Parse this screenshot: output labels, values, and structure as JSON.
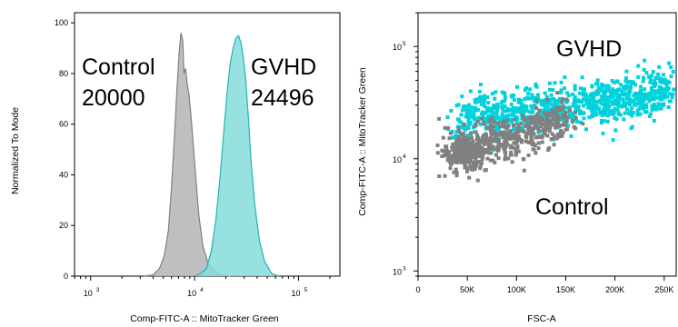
{
  "chart_data": [
    {
      "type": "area",
      "xscale": "log",
      "xlabel": "Comp-FITC-A :: MitoTracker Green",
      "ylabel": "Normalized To Mode",
      "xlim": [
        700,
        250000
      ],
      "ylim": [
        0,
        104
      ],
      "x_ticks": [
        "10",
        "10",
        "10"
      ],
      "x_tick_exponents": [
        "3",
        "4",
        "5"
      ],
      "y_ticks": [
        "0",
        "20",
        "40",
        "60",
        "80",
        "100"
      ],
      "annotations": [
        {
          "text": "Control",
          "color": "#000000"
        },
        {
          "text": "20000",
          "color": "#000000"
        },
        {
          "text": "GVHD",
          "color": "#000000"
        },
        {
          "text": "24496",
          "color": "#000000"
        }
      ],
      "series": [
        {
          "color": "#808080",
          "fill": "#b4b4b4",
          "x": [
            3300,
            4000,
            4600,
            5100,
            5600,
            6000,
            6400,
            6800,
            7100,
            7400,
            7700,
            7900,
            8200,
            8500,
            8800,
            9200,
            9700,
            10300,
            11000,
            12000,
            13500,
            15500,
            18000,
            22000
          ],
          "y": [
            0,
            0.5,
            3,
            8,
            18,
            35,
            55,
            75,
            88,
            96,
            93,
            80,
            82,
            76,
            72,
            64,
            52,
            38,
            24,
            12,
            5,
            2,
            0.5,
            0
          ]
        },
        {
          "color": "#1fb5b5",
          "fill": "#86dcdc",
          "x": [
            10000,
            11500,
            13000,
            14500,
            16000,
            17500,
            19000,
            20500,
            22000,
            23500,
            25000,
            26500,
            28000,
            29500,
            31000,
            33000,
            35000,
            38000,
            42000,
            47000,
            55000,
            65000
          ],
          "y": [
            0,
            1,
            3,
            10,
            22,
            38,
            56,
            72,
            84,
            90,
            94,
            95,
            92,
            86,
            78,
            62,
            45,
            28,
            14,
            6,
            1,
            0
          ]
        }
      ]
    },
    {
      "type": "scatter",
      "xlabel": "FSC-A",
      "ylabel": "Comp-FITC-A :: MitoTracker Green",
      "yscale": "log",
      "xlim": [
        0,
        262144
      ],
      "ylim": [
        900,
        200000
      ],
      "x_ticks": [
        "0",
        "50K",
        "100K",
        "150K",
        "200K",
        "250K"
      ],
      "x_tick_values": [
        0,
        50000,
        100000,
        150000,
        200000,
        250000
      ],
      "y_ticks": [
        "10",
        "10",
        "10"
      ],
      "y_tick_exponents": [
        "3",
        "4",
        "5"
      ],
      "annotations": [
        {
          "text": "GVHD",
          "color": "#000000"
        },
        {
          "text": "Control",
          "color": "#000000"
        }
      ],
      "series": [
        {
          "color": "#00d2dc",
          "description_points": [
            [
              40000,
              18000
            ],
            [
              60000,
              25000
            ],
            [
              80000,
              22000
            ],
            [
              100000,
              26000
            ],
            [
              120000,
              27000
            ],
            [
              140000,
              28000
            ],
            [
              160000,
              30000
            ],
            [
              180000,
              32000
            ],
            [
              200000,
              33000
            ],
            [
              220000,
              35000
            ],
            [
              240000,
              38000
            ],
            [
              255000,
              40000
            ]
          ]
        },
        {
          "color": "#808080",
          "description_points": [
            [
              35000,
              10000
            ],
            [
              45000,
              12000
            ],
            [
              55000,
              11000
            ],
            [
              70000,
              14000
            ],
            [
              90000,
              15000
            ],
            [
              110000,
              16000
            ],
            [
              130000,
              20000
            ],
            [
              150000,
              24000
            ]
          ]
        }
      ]
    }
  ]
}
